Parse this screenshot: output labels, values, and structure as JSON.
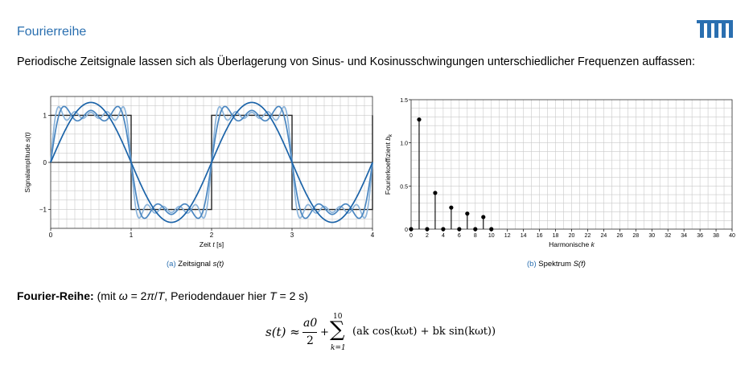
{
  "header": {
    "title": "Fourierreihe",
    "intro": "Periodische Zeitsignale lassen sich als Überlagerung von Sinus- und Kosinusschwingungen unterschiedlicher Frequenzen auffassen:"
  },
  "colors": {
    "accent": "#2a6fb0",
    "series_dark": "#1b63a8",
    "series_mid": "#4a86c0",
    "series_light": "#8db5db",
    "square": "#222222",
    "grid": "#c9c9c9"
  },
  "chart_data": [
    {
      "type": "line",
      "xlabel_prefix": "Zeit ",
      "xlabel_var": "t",
      "xlabel_suffix": " [s]",
      "ylabel_prefix": "Signalamplitude ",
      "ylabel_var": "s(t)",
      "xlim": [
        0,
        4
      ],
      "ylim": [
        -1.4,
        1.4
      ],
      "x_ticks": [
        0,
        1,
        2,
        3,
        4
      ],
      "y_ticks": [
        -1,
        0,
        1
      ],
      "y_tick_labels": [
        "−1",
        "0",
        "1"
      ],
      "grid": true,
      "period": 2,
      "square_wave_amplitude": 1,
      "partial_sums_harmonics": [
        1,
        5,
        9
      ]
    },
    {
      "type": "stem",
      "xlabel_prefix": "Harmonische ",
      "xlabel_var": "k",
      "ylabel_prefix": "Fourierkoeffizient ",
      "ylabel_var": "b",
      "ylabel_sub": "k",
      "xlim": [
        0,
        40
      ],
      "ylim": [
        0,
        1.5
      ],
      "x_ticks": [
        0,
        2,
        4,
        6,
        8,
        10,
        12,
        14,
        16,
        18,
        20,
        22,
        24,
        26,
        28,
        30,
        32,
        34,
        36,
        38,
        40
      ],
      "y_ticks": [
        0,
        0.5,
        1.0,
        1.5
      ],
      "y_tick_labels": [
        "0",
        "0.5",
        "1.0",
        "1.5"
      ],
      "grid": true,
      "k": [
        0,
        1,
        2,
        3,
        4,
        5,
        6,
        7,
        8,
        9,
        10
      ],
      "values": [
        0,
        1.27,
        0,
        0.42,
        0,
        0.25,
        0,
        0.18,
        0,
        0.14,
        0
      ]
    }
  ],
  "captions": {
    "a_label": "(a)",
    "a_text": " Zeitsignal ",
    "a_var": "s(t)",
    "b_label": "(b)",
    "b_text": " Spektrum ",
    "b_var": "S(f)"
  },
  "fourier": {
    "heading": "Fourier-Reihe:",
    "p1": " (mit ",
    "omega": "ω",
    "p2": " = 2",
    "pi": "π",
    "p3": "/",
    "T1": "T",
    "p4": ", Periodendauer hier ",
    "T2": "T",
    "p5": " = 2 s)"
  },
  "formula": {
    "lhs": "s(t) ≈",
    "num": "a0",
    "den": "2",
    "plus": "+",
    "sum_top": "10",
    "sigma": "∑",
    "sum_bottom": "k=1",
    "rhs": "(ak cos(kωt) + bk sin(kωt))"
  }
}
